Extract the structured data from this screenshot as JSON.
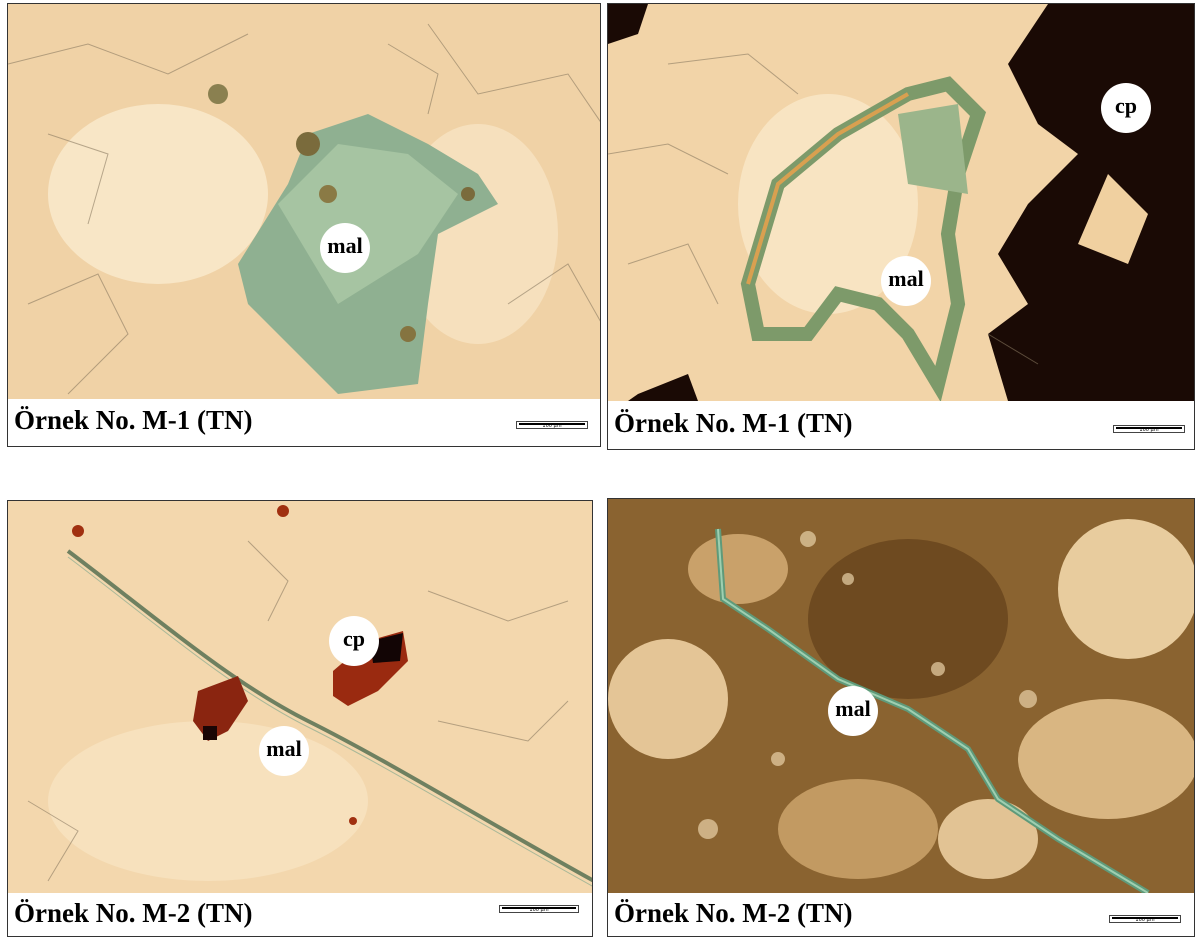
{
  "panels": [
    {
      "caption": "Örnek No. M-1 (TN)",
      "labels": [
        "mal"
      ],
      "scale_bar": "100 µm"
    },
    {
      "caption": "Örnek No. M-1 (TN)",
      "labels": [
        "cp",
        "mal"
      ],
      "scale_bar": "100 µm"
    },
    {
      "caption": "Örnek No. M-2 (TN)",
      "labels": [
        "cp",
        "mal"
      ],
      "scale_bar": "100 µm"
    },
    {
      "caption": "Örnek No. M-2 (TN)",
      "labels": [
        "mal"
      ],
      "scale_bar": "100 µm"
    }
  ]
}
